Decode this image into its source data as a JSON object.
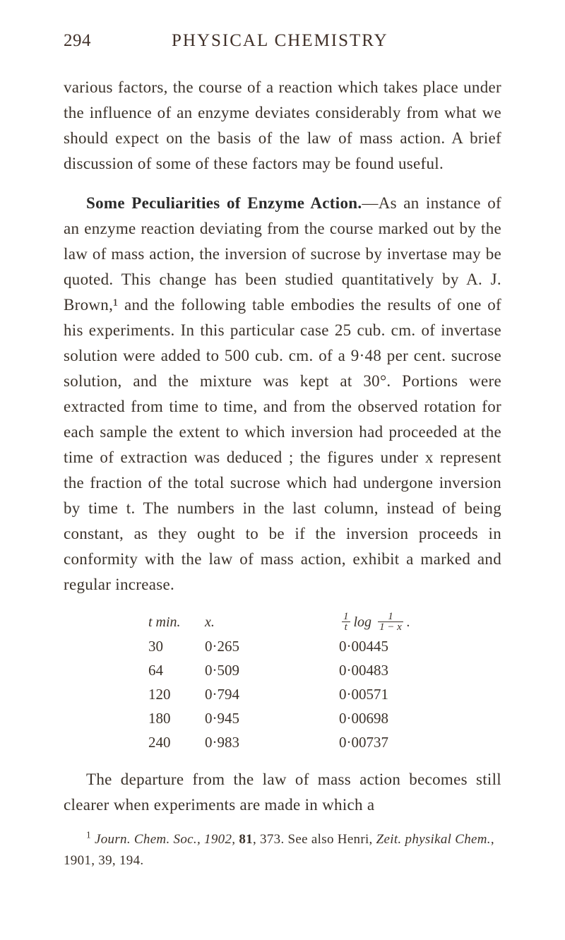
{
  "header": {
    "page_number": "294",
    "running_head": "PHYSICAL CHEMISTRY"
  },
  "paragraphs": {
    "p1": "various factors, the course of a reaction which takes place under the influence of an enzyme deviates con­siderably from what we should expect on the basis of the law of mass action. A brief discussion of some of these factors may be found useful.",
    "p2_lead": "Some Peculiarities of Enzyme Action.",
    "p2_rest": "—As an in­stance of an enzyme reaction deviating from the course marked out by the law of mass action, the inversion of sucrose by invertase may be quoted. This change has been studied quantitatively by A. J. Brown,¹ and the following table embodies the results of one of his ex­periments. In this particular case 25 cub. cm. of in­vertase solution were added to 500 cub. cm. of a 9·48 per cent. sucrose solution, and the mixture was kept at 30°. Portions were extracted from time to time, and from the observed rotation for each sample the extent to which inversion had proceeded at the time of extraction was deduced ; the figures under x repre­sent the fraction of the total sucrose which had under­gone inversion by time t. The numbers in the last column, instead of being constant, as they ought to be if the inversion proceeds in conformity with the law of mass action, exhibit a marked and regular increase.",
    "p3": "The departure from the law of mass action becomes still clearer when experiments are made in which a"
  },
  "table": {
    "head": {
      "c1": "t min.",
      "c2": "x.",
      "c3_prefix": "log",
      "c3_num": "1",
      "c3_den": "1 − x",
      "c3_outer_num": "1",
      "c3_outer_den": "t"
    },
    "rows": [
      {
        "c1": "30",
        "c2": "0·265",
        "c3": "0·00445"
      },
      {
        "c1": "64",
        "c2": "0·509",
        "c3": "0·00483"
      },
      {
        "c1": "120",
        "c2": "0·794",
        "c3": "0·00571"
      },
      {
        "c1": "180",
        "c2": "0·945",
        "c3": "0·00698"
      },
      {
        "c1": "240",
        "c2": "0·983",
        "c3": "0·00737"
      }
    ]
  },
  "footnote": {
    "marker": "1",
    "text_a": " Journ. Chem. Soc., 1902, ",
    "bold": "81",
    "text_b": ", 373. See also Henri, ",
    "ital": "Zeit. physikal Chem.",
    "text_c": ", 1901, 39, 194."
  }
}
